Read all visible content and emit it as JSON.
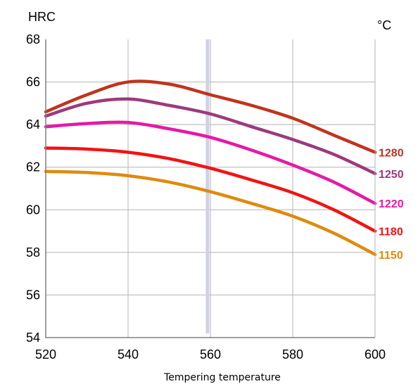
{
  "chart_data": {
    "type": "line",
    "ylabel": "HRC",
    "unit_label": "°C",
    "xlabel": "Tempering temperature",
    "xlim": [
      520,
      600
    ],
    "ylim": [
      54,
      68
    ],
    "x_ticks": [
      "520",
      "540",
      "560",
      "580",
      "600"
    ],
    "y_ticks": [
      "54",
      "56",
      "58",
      "60",
      "62",
      "64",
      "66",
      "68"
    ],
    "grid": true,
    "marker_line": {
      "x": 559.3,
      "y_from": 54.2,
      "y_to": 68,
      "color": "#d0d0e6"
    },
    "x": [
      520,
      530,
      540,
      550,
      560,
      570,
      580,
      590,
      600
    ],
    "series": [
      {
        "name": "1280",
        "color": "#c0341d",
        "values": [
          64.6,
          65.4,
          66.0,
          65.9,
          65.4,
          64.9,
          64.3,
          63.5,
          62.7
        ]
      },
      {
        "name": "1250",
        "color": "#9c3a7c",
        "values": [
          64.4,
          65.0,
          65.2,
          64.9,
          64.5,
          63.9,
          63.3,
          62.6,
          61.7
        ]
      },
      {
        "name": "1220",
        "color": "#e619a6",
        "values": [
          63.9,
          64.05,
          64.1,
          63.8,
          63.4,
          62.8,
          62.1,
          61.3,
          60.3
        ]
      },
      {
        "name": "1180",
        "color": "#f01414",
        "values": [
          62.9,
          62.85,
          62.7,
          62.4,
          61.95,
          61.4,
          60.8,
          60.0,
          59.0
        ]
      },
      {
        "name": "1150",
        "color": "#e08a0e",
        "values": [
          61.8,
          61.75,
          61.6,
          61.3,
          60.85,
          60.3,
          59.7,
          58.9,
          57.9
        ]
      }
    ]
  }
}
